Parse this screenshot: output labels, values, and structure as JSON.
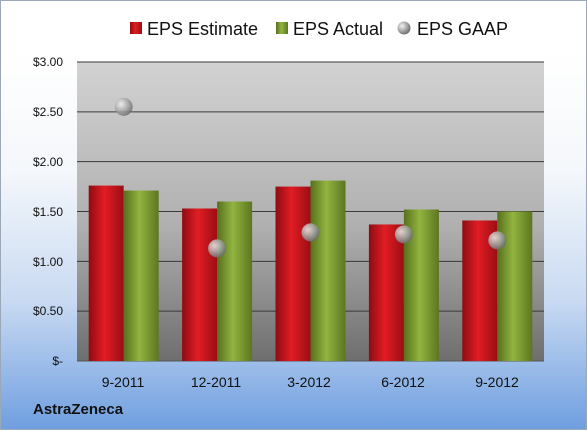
{
  "company": "AstraZeneca",
  "chart_data": {
    "type": "bar",
    "categories": [
      "9-2011",
      "12-2011",
      "3-2012",
      "6-2012",
      "9-2012"
    ],
    "series": [
      {
        "name": "EPS Estimate",
        "kind": "bar",
        "color": "#c0141c",
        "values": [
          1.76,
          1.53,
          1.75,
          1.37,
          1.41
        ]
      },
      {
        "name": "EPS Actual",
        "kind": "bar",
        "color": "#7a9a2e",
        "values": [
          1.71,
          1.6,
          1.81,
          1.52,
          1.5
        ]
      },
      {
        "name": "EPS GAAP",
        "kind": "marker",
        "color": "#9a9a9a",
        "values": [
          2.55,
          1.13,
          1.29,
          1.27,
          1.21
        ]
      }
    ],
    "y_ticks": [
      "$3.00",
      "$2.50",
      "$2.00",
      "$1.50",
      "$1.00",
      "$0.50",
      "$-"
    ],
    "ylim": [
      0,
      3.0
    ],
    "grid": true,
    "legend_position": "top"
  }
}
